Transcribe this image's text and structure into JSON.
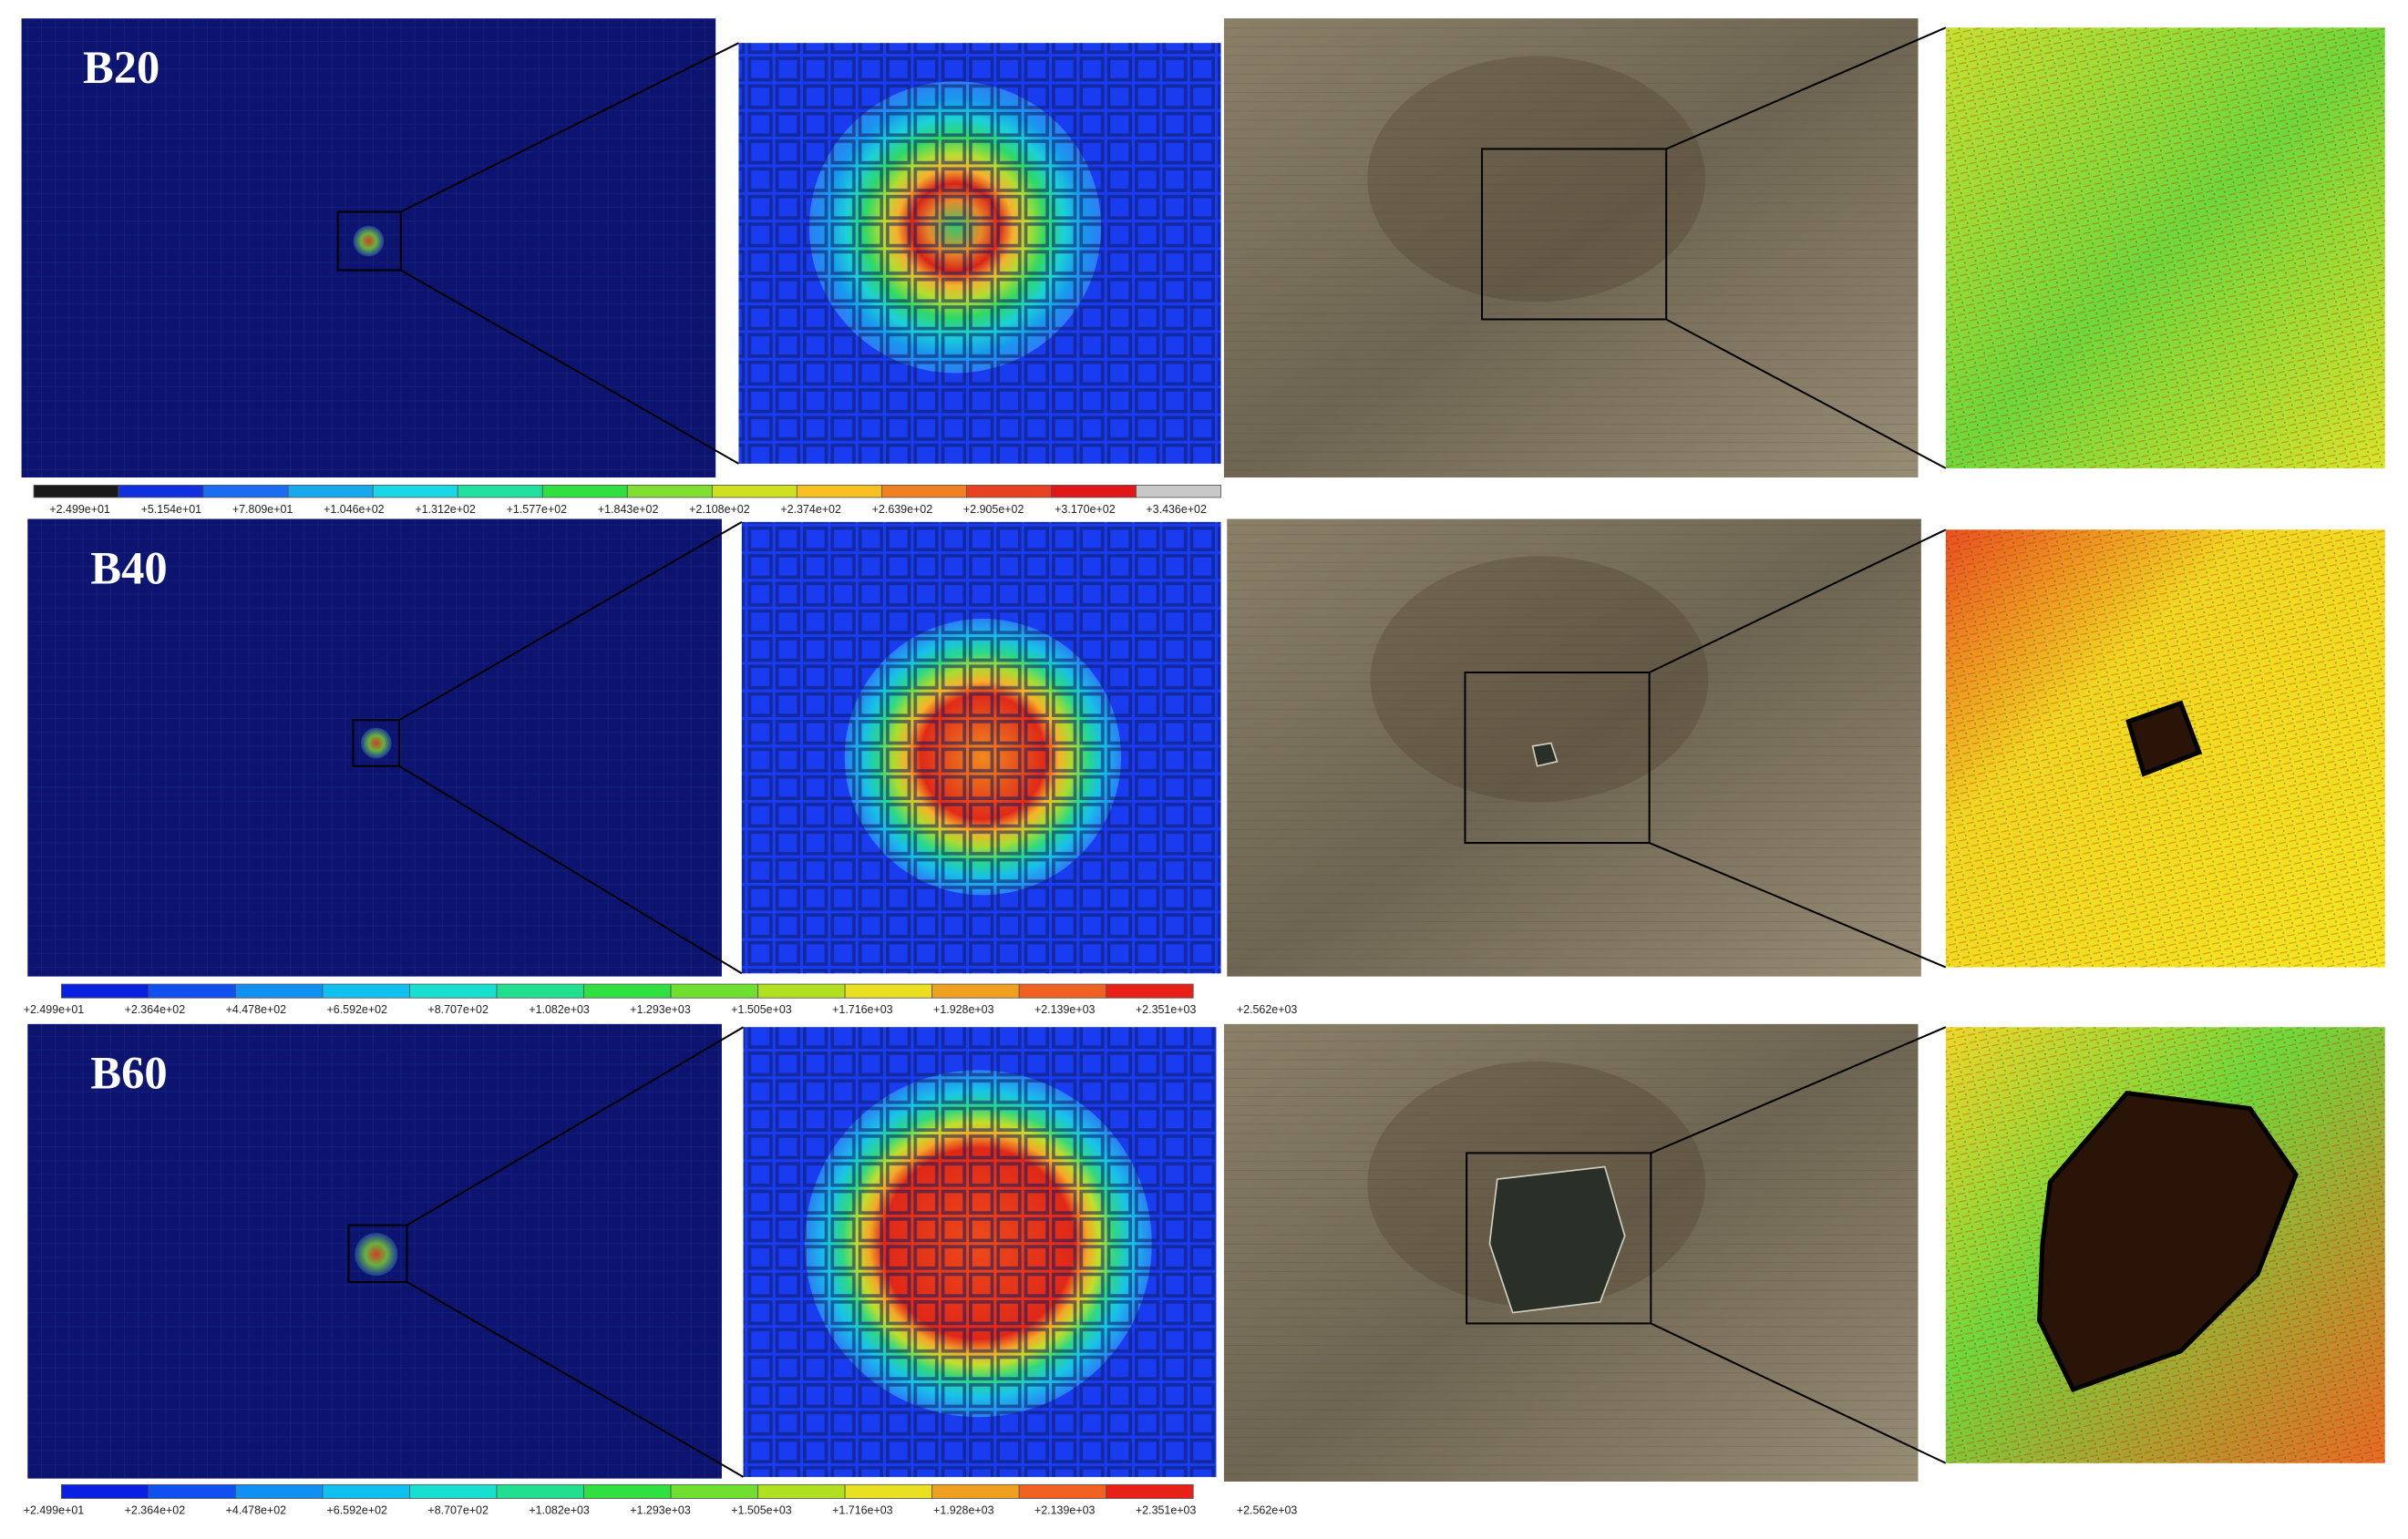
{
  "rows": [
    {
      "label": "B20",
      "colorbar": [
        "+2.499e+01",
        "+5.154e+01",
        "+7.809e+01",
        "+1.046e+02",
        "+1.312e+02",
        "+1.577e+02",
        "+1.843e+02",
        "+2.108e+02",
        "+2.374e+02",
        "+2.639e+02",
        "+2.905e+02",
        "+3.170e+02",
        "+3.436e+02"
      ]
    },
    {
      "label": "B40",
      "colorbar": [
        "+2.499e+01",
        "+2.364e+02",
        "+4.478e+02",
        "+6.592e+02",
        "+8.707e+02",
        "+1.082e+03",
        "+1.293e+03",
        "+1.505e+03",
        "+1.716e+03",
        "+1.928e+03",
        "+2.139e+03",
        "+2.351e+03",
        "+2.562e+03"
      ]
    },
    {
      "label": "B60",
      "colorbar": [
        "+2.499e+01",
        "+2.364e+02",
        "+4.478e+02",
        "+6.592e+02",
        "+8.707e+02",
        "+1.082e+03",
        "+1.293e+03",
        "+1.505e+03",
        "+1.716e+03",
        "+1.928e+03",
        "+2.139e+03",
        "+2.351e+03",
        "+2.562e+03"
      ]
    }
  ]
}
